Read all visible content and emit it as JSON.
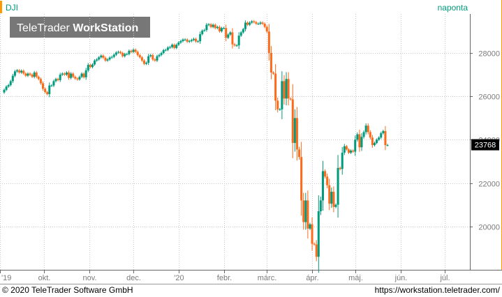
{
  "header": {
    "symbol": "DJI",
    "interval": "naponta",
    "watermark": "TeleTrader WorkStation",
    "watermark_parts": [
      "TeleTrader ",
      "WorkStation"
    ]
  },
  "footer": {
    "copyright": "© 2020 TeleTrader Software GmbH",
    "url": "https://workstation.teletrader.com/"
  },
  "colors": {
    "up": "#009a7c",
    "down": "#ff6a1a",
    "accent": "#ff9900",
    "last_price_bg": "#000000",
    "last_price_text": "#ffffff"
  },
  "chart_data": {
    "type": "candlestick",
    "title": "DJI",
    "interval": "naponta",
    "ylim": [
      18000,
      29800
    ],
    "y_ticks": [
      20000,
      22000,
      24000,
      26000,
      28000
    ],
    "y_tick_labels": [
      "20000",
      "22000",
      "24000",
      "26000",
      "28000"
    ],
    "x_ticks": [
      {
        "label": "'19",
        "date": "2019-09-01"
      },
      {
        "label": "okt.",
        "date": "2019-10-01"
      },
      {
        "label": "nov.",
        "date": "2019-11-01"
      },
      {
        "label": "dec.",
        "date": "2019-12-01"
      },
      {
        "label": "'20",
        "date": "2020-01-01"
      },
      {
        "label": "febr.",
        "date": "2020-02-01"
      },
      {
        "label": "márc.",
        "date": "2020-03-01"
      },
      {
        "label": "ápr.",
        "date": "2020-04-01"
      },
      {
        "label": "máj.",
        "date": "2020-05-01"
      },
      {
        "label": "jún.",
        "date": "2020-06-01"
      },
      {
        "label": "júl.",
        "date": "2020-07-01"
      }
    ],
    "xlim": [
      "2019-09-01",
      "2020-07-18"
    ],
    "last_price": 23768,
    "grid": true,
    "series": [
      {
        "closes": [
          26300,
          26450,
          26520,
          26700,
          26950,
          27150,
          27200,
          27100,
          27180,
          27050,
          26950,
          27050,
          27000,
          26900,
          27100,
          26900,
          26800,
          26600,
          26350,
          26200,
          26100,
          26500,
          26500,
          26700,
          26800,
          26750,
          27000,
          27050,
          27000,
          27100,
          26850,
          27050,
          26900,
          26820,
          26780,
          26900,
          27050,
          26880,
          27200,
          27450,
          27350,
          27470,
          27650,
          27700,
          27800,
          27880,
          27780,
          27650,
          27700,
          27790,
          27820,
          27920,
          28020,
          28050,
          28000,
          27850,
          27950,
          27950,
          28100,
          28050,
          28150,
          28050,
          27900,
          27800,
          27650,
          27500,
          27550,
          27850,
          27900,
          27700,
          27650,
          27850,
          27910,
          28000,
          28130,
          28140,
          28250,
          28270,
          28380,
          28230,
          28380,
          28480,
          28550,
          28620,
          28620,
          28520,
          28550,
          28600,
          28650,
          28530,
          28540,
          28870,
          29030,
          29060,
          29300,
          29320,
          29200,
          29300,
          29150,
          29200,
          29000,
          29150,
          29150,
          28700,
          28850,
          28950,
          28400,
          28350,
          28350,
          28800,
          28950,
          29100,
          29400,
          29300,
          29400,
          29460,
          29420,
          29350,
          29350,
          29400,
          29350,
          29200,
          28990,
          28000,
          27100,
          27050,
          25800,
          25400,
          25400,
          26700,
          25900,
          26800,
          25900,
          25860,
          23850,
          25000,
          23550,
          23200,
          21200,
          20200,
          21200,
          19900,
          20100,
          19200,
          19170,
          18600,
          20700,
          21200,
          22550,
          22300,
          21900,
          21050,
          21600,
          20900,
          21000,
          22700,
          22650,
          23400,
          23700,
          23550,
          23400,
          23500,
          23450,
          24000,
          24250,
          23650,
          24130,
          24350,
          24650,
          24350,
          24100,
          23750,
          23850,
          24000,
          24100,
          24300,
          24400,
          23750,
          23750
        ]
      }
    ]
  }
}
